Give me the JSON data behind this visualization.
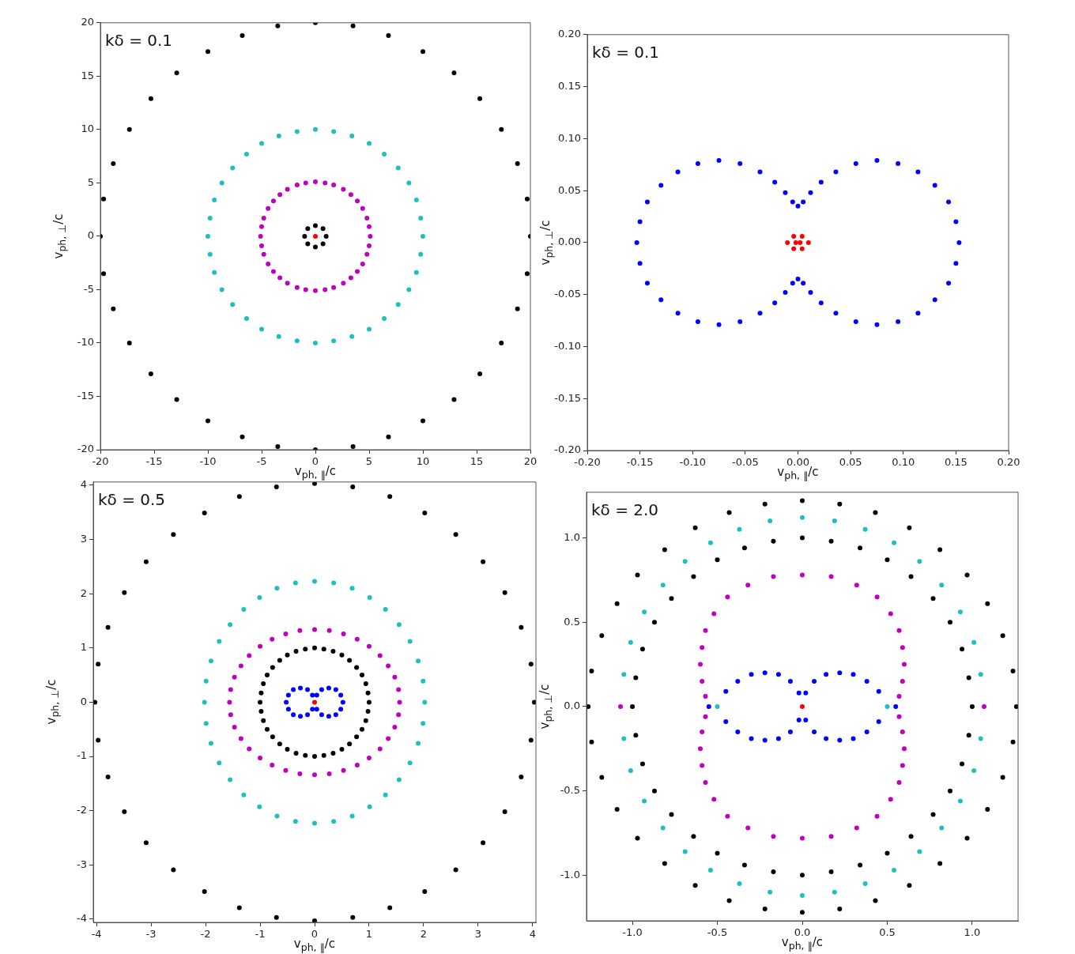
{
  "chart_data": [
    {
      "type": "scatter",
      "marker": "circle",
      "xlabel": "v$_{ph, ∥}$/c",
      "ylabel": "v$_{ph, ⊥}$/c",
      "annotations": [
        "kδ = 0.1"
      ],
      "xlim": [
        -20,
        20
      ],
      "ylim": [
        -20,
        20
      ],
      "xticks": [
        -20,
        -15,
        -10,
        -5,
        0,
        5,
        10,
        15,
        20
      ],
      "yticks": [
        -20,
        -15,
        -10,
        -5,
        0,
        5,
        10,
        15,
        20
      ],
      "series": [
        {
          "color": "#000000",
          "x": [
            20,
            19.7,
            18.8,
            17.3,
            15.3,
            12.9,
            10,
            6.8,
            3.5,
            0,
            -3.5,
            -6.8,
            -10,
            -12.9,
            -15.3,
            -17.3,
            -18.8,
            -19.7,
            -20,
            -19.7,
            -18.8,
            -17.3,
            -15.3,
            -12.9,
            -10,
            -6.8,
            -3.5,
            0,
            3.5,
            6.8,
            10,
            12.9,
            15.3,
            17.3,
            18.8,
            19.7
          ],
          "values": [
            0,
            3.5,
            6.8,
            10,
            12.9,
            15.3,
            17.3,
            18.8,
            19.7,
            20,
            19.7,
            18.8,
            17.3,
            15.3,
            12.9,
            10,
            6.8,
            3.5,
            0,
            -3.5,
            -6.8,
            -10,
            -12.9,
            -15.3,
            -17.3,
            -18.8,
            -19.7,
            -20,
            -19.7,
            -18.8,
            -17.3,
            -15.3,
            -12.9,
            -10,
            -6.8,
            -3.5
          ]
        },
        {
          "color": "#1fbfbf",
          "x": [
            10,
            9.8,
            9.4,
            8.7,
            7.7,
            6.4,
            5,
            3.4,
            1.7,
            0,
            -1.7,
            -3.4,
            -5,
            -6.4,
            -7.7,
            -8.7,
            -9.4,
            -9.8,
            -10,
            -9.8,
            -9.4,
            -8.7,
            -7.7,
            -6.4,
            -5,
            -3.4,
            -1.7,
            0,
            1.7,
            3.4,
            5,
            6.4,
            7.7,
            8.7,
            9.4,
            9.8
          ],
          "values": [
            0,
            1.7,
            3.4,
            5,
            6.4,
            7.7,
            8.7,
            9.4,
            9.8,
            10,
            9.8,
            9.4,
            8.7,
            7.7,
            6.4,
            5,
            3.4,
            1.7,
            0,
            -1.7,
            -3.4,
            -5,
            -6.4,
            -7.7,
            -8.7,
            -9.4,
            -9.8,
            -10,
            -9.8,
            -9.4,
            -8.7,
            -7.7,
            -6.4,
            -5,
            -3.4,
            -1.7
          ]
        },
        {
          "color": "#bf00bf",
          "x": [
            5.1,
            5,
            4.8,
            4.4,
            3.9,
            3.3,
            2.6,
            1.7,
            0.9,
            0,
            -0.9,
            -1.7,
            -2.6,
            -3.3,
            -3.9,
            -4.4,
            -4.8,
            -5,
            -5.1,
            -5,
            -4.8,
            -4.4,
            -3.9,
            -3.3,
            -2.6,
            -1.7,
            -0.9,
            0,
            0.9,
            1.7,
            2.6,
            3.3,
            3.9,
            4.4,
            4.8,
            5
          ],
          "values": [
            0,
            0.9,
            1.7,
            2.6,
            3.3,
            3.9,
            4.4,
            4.8,
            5,
            5.1,
            5,
            4.8,
            4.4,
            3.9,
            3.3,
            2.6,
            1.7,
            0.9,
            0,
            -0.9,
            -1.7,
            -2.6,
            -3.3,
            -3.9,
            -4.4,
            -4.8,
            -5,
            -5.1,
            -5,
            -4.8,
            -4.4,
            -3.9,
            -3.3,
            -2.6,
            -1.7,
            -0.9
          ]
        },
        {
          "color": "#000000",
          "x": [
            1,
            0.71,
            0,
            -0.71,
            -1,
            -0.71,
            0,
            0.71
          ],
          "values": [
            0,
            0.71,
            1,
            0.71,
            0,
            -0.71,
            -1,
            -0.71
          ]
        },
        {
          "color": "#ff0000",
          "x": [
            0
          ],
          "values": [
            0
          ]
        }
      ]
    },
    {
      "type": "scatter",
      "marker": "circle",
      "xlabel": "v$_{ph, ∥}$/c",
      "ylabel": "v$_{ph, ⊥}$/c",
      "annotations": [
        "kδ = 0.1"
      ],
      "xlim": [
        -0.2,
        0.2
      ],
      "ylim": [
        -0.2,
        0.2
      ],
      "xticks": [
        {
          "value": -0.2,
          "label": "-0.20"
        },
        {
          "value": -0.15,
          "label": "-0.15"
        },
        {
          "value": -0.1,
          "label": "-0.10"
        },
        {
          "value": -0.05,
          "label": "-0.05"
        },
        {
          "value": 0,
          "label": "0.00"
        },
        {
          "value": 0.05,
          "label": "0.05"
        },
        {
          "value": 0.1,
          "label": "0.10"
        },
        {
          "value": 0.15,
          "label": "0.15"
        },
        {
          "value": 0.2,
          "label": "0.20"
        }
      ],
      "yticks": [
        {
          "value": -0.2,
          "label": "-0.20"
        },
        {
          "value": -0.15,
          "label": "-0.15"
        },
        {
          "value": -0.1,
          "label": "-0.10"
        },
        {
          "value": -0.05,
          "label": "-0.05"
        },
        {
          "value": 0,
          "label": "0.00"
        },
        {
          "value": 0.05,
          "label": "0.05"
        },
        {
          "value": 0.1,
          "label": "0.10"
        },
        {
          "value": 0.15,
          "label": "0.15"
        },
        {
          "value": 0.2,
          "label": "0.20"
        }
      ],
      "series": [
        {
          "color": "#0000ff",
          "x": [
            0.153,
            0.15,
            0.143,
            0.13,
            0.114,
            0.095,
            0.075,
            0.055,
            0.036,
            0.022,
            0.012,
            0.005,
            0,
            -0.005,
            -0.012,
            -0.022,
            -0.036,
            -0.055,
            -0.075,
            -0.095,
            -0.114,
            -0.13,
            -0.143,
            -0.15,
            -0.153,
            -0.15,
            -0.143,
            -0.13,
            -0.114,
            -0.095,
            -0.075,
            -0.055,
            -0.036,
            -0.022,
            -0.012,
            -0.005,
            0,
            0.005,
            0.012,
            0.022,
            0.036,
            0.055,
            0.075,
            0.095,
            0.114,
            0.13,
            0.143,
            0.15
          ],
          "values": [
            0,
            0.02,
            0.039,
            0.055,
            0.068,
            0.076,
            0.079,
            0.076,
            0.068,
            0.058,
            0.048,
            0.039,
            0.035,
            0.039,
            0.048,
            0.058,
            0.068,
            0.076,
            0.079,
            0.076,
            0.068,
            0.055,
            0.039,
            0.02,
            0,
            -0.02,
            -0.039,
            -0.055,
            -0.068,
            -0.076,
            -0.079,
            -0.076,
            -0.068,
            -0.058,
            -0.048,
            -0.039,
            -0.035,
            -0.039,
            -0.048,
            -0.058,
            -0.068,
            -0.076,
            -0.079,
            -0.076,
            -0.068,
            -0.055,
            -0.039,
            -0.02
          ]
        },
        {
          "color": "#ff0000",
          "x": [
            -0.01,
            -0.004,
            -0.004,
            0.002,
            -0.002,
            0.004,
            0.004,
            0.01
          ],
          "values": [
            0,
            0.006,
            -0.006,
            0,
            0,
            0.006,
            -0.006,
            0
          ]
        }
      ]
    },
    {
      "type": "scatter",
      "marker": "circle",
      "xlabel": "v$_{ph, ∥}$/c",
      "ylabel": "v$_{ph, ⊥}$/c",
      "annotations": [
        "kδ = 0.5"
      ],
      "xlim": [
        -4.06,
        4.06
      ],
      "ylim": [
        -4.06,
        4.06
      ],
      "xticks": [
        -4,
        -3,
        -2,
        -1,
        0,
        1,
        2,
        3,
        4
      ],
      "yticks": [
        -4,
        -3,
        -2,
        -1,
        0,
        1,
        2,
        3,
        4
      ],
      "series": [
        {
          "color": "#000000",
          "x": [
            4.03,
            3.97,
            3.79,
            3.49,
            3.09,
            2.59,
            2.02,
            1.38,
            0.7,
            0,
            -0.7,
            -1.38,
            -2.02,
            -2.59,
            -3.09,
            -3.49,
            -3.79,
            -3.97,
            -4.03,
            -3.97,
            -3.79,
            -3.49,
            -3.09,
            -2.59,
            -2.02,
            -1.38,
            -0.7,
            0,
            0.7,
            1.38,
            2.02,
            2.59,
            3.09,
            3.49,
            3.79,
            3.97
          ],
          "values": [
            0,
            0.7,
            1.38,
            2.02,
            2.59,
            3.09,
            3.49,
            3.79,
            3.97,
            4.03,
            3.97,
            3.79,
            3.49,
            3.09,
            2.59,
            2.02,
            1.38,
            0.7,
            0,
            -0.7,
            -1.38,
            -2.02,
            -2.59,
            -3.09,
            -3.49,
            -3.79,
            -3.97,
            -4.03,
            -3.97,
            -3.79,
            -3.49,
            -3.09,
            -2.59,
            -2.02,
            -1.38,
            -0.7
          ]
        },
        {
          "color": "#1fbfbf",
          "x": [
            2.02,
            1.99,
            1.9,
            1.75,
            1.55,
            1.3,
            1.01,
            0.69,
            0.35,
            0,
            -0.35,
            -0.69,
            -1.01,
            -1.3,
            -1.55,
            -1.75,
            -1.9,
            -1.99,
            -2.02,
            -1.99,
            -1.9,
            -1.75,
            -1.55,
            -1.3,
            -1.01,
            -0.69,
            -0.35,
            0,
            0.35,
            0.69,
            1.01,
            1.3,
            1.55,
            1.75,
            1.9,
            1.99
          ],
          "values": [
            0,
            0.39,
            0.76,
            1.12,
            1.43,
            1.71,
            1.93,
            2.1,
            2.2,
            2.23,
            2.2,
            2.1,
            1.93,
            1.71,
            1.43,
            1.12,
            0.76,
            0.39,
            0,
            -0.39,
            -0.76,
            -1.12,
            -1.43,
            -1.71,
            -1.93,
            -2.1,
            -2.2,
            -2.23,
            -2.2,
            -2.1,
            -1.93,
            -1.71,
            -1.43,
            -1.12,
            -0.76,
            -0.39
          ]
        },
        {
          "color": "#bf00bf",
          "x": [
            1.56,
            1.54,
            1.47,
            1.35,
            1.2,
            1.0,
            0.78,
            0.53,
            0.27,
            0,
            -0.27,
            -0.53,
            -0.78,
            -1.0,
            -1.2,
            -1.35,
            -1.47,
            -1.54,
            -1.56,
            -1.54,
            -1.47,
            -1.35,
            -1.2,
            -1.0,
            -0.78,
            -0.53,
            -0.27,
            0,
            0.27,
            0.53,
            0.78,
            1.0,
            1.2,
            1.35,
            1.47,
            1.54
          ],
          "values": [
            0,
            0.23,
            0.46,
            0.67,
            0.86,
            1.03,
            1.16,
            1.26,
            1.32,
            1.34,
            1.32,
            1.26,
            1.16,
            1.03,
            0.86,
            0.67,
            0.46,
            0.23,
            0,
            -0.23,
            -0.46,
            -0.67,
            -0.86,
            -1.03,
            -1.16,
            -1.26,
            -1.32,
            -1.34,
            -1.32,
            -1.26,
            -1.16,
            -1.03,
            -0.86,
            -0.67,
            -0.46,
            -0.23
          ]
        },
        {
          "color": "#000000",
          "x": [
            1,
            0.98,
            0.94,
            0.87,
            0.77,
            0.64,
            0.5,
            0.34,
            0.17,
            0,
            -0.17,
            -0.34,
            -0.5,
            -0.64,
            -0.77,
            -0.87,
            -0.94,
            -0.98,
            -1,
            -0.98,
            -0.94,
            -0.87,
            -0.77,
            -0.64,
            -0.5,
            -0.34,
            -0.17,
            0,
            0.17,
            0.34,
            0.5,
            0.64,
            0.77,
            0.87,
            0.94,
            0.98
          ],
          "values": [
            0,
            0.17,
            0.34,
            0.5,
            0.64,
            0.77,
            0.87,
            0.94,
            0.98,
            1,
            0.98,
            0.94,
            0.87,
            0.77,
            0.64,
            0.5,
            0.34,
            0.17,
            0,
            -0.17,
            -0.34,
            -0.5,
            -0.64,
            -0.77,
            -0.87,
            -0.94,
            -0.98,
            -1,
            -0.98,
            -0.94,
            -0.87,
            -0.77,
            -0.64,
            -0.5,
            -0.34,
            -0.17
          ]
        },
        {
          "color": "#0000ff",
          "x": [
            0.04,
            0.13,
            0.26,
            0.39,
            0.48,
            0.52,
            0.48,
            0.39,
            0.26,
            0.13,
            0.04,
            -0.04,
            -0.13,
            -0.26,
            -0.39,
            -0.48,
            -0.52,
            -0.48,
            -0.39,
            -0.26,
            -0.13,
            -0.04
          ],
          "values": [
            0.13,
            0.23,
            0.26,
            0.23,
            0.13,
            0,
            -0.13,
            -0.23,
            -0.26,
            -0.23,
            -0.13,
            0.13,
            0.23,
            0.26,
            0.23,
            0.13,
            0,
            -0.13,
            -0.23,
            -0.26,
            -0.23,
            -0.13
          ]
        },
        {
          "color": "#ff0000",
          "x": [
            0
          ],
          "values": [
            0
          ]
        }
      ]
    },
    {
      "type": "scatter",
      "marker": "circle",
      "xlabel": "v$_{ph, ∥}$/c",
      "ylabel": "v$_{ph, ⊥}$/c",
      "annotations": [
        "kδ = 2.0"
      ],
      "xlim": [
        -1.27,
        1.27
      ],
      "ylim": [
        -1.27,
        1.27
      ],
      "xticks": [
        {
          "value": -1,
          "label": "-1.0"
        },
        {
          "value": -0.5,
          "label": "-0.5"
        },
        {
          "value": 0,
          "label": "0.0"
        },
        {
          "value": 0.5,
          "label": "0.5"
        },
        {
          "value": 1,
          "label": "1.0"
        }
      ],
      "yticks": [
        {
          "value": -1,
          "label": "-1.0"
        },
        {
          "value": -0.5,
          "label": "-0.5"
        },
        {
          "value": 0,
          "label": "0.0"
        },
        {
          "value": 0.5,
          "label": "0.5"
        },
        {
          "value": 1,
          "label": "1.0"
        }
      ],
      "series": [
        {
          "color": "#000000",
          "x": [
            1.26,
            1.24,
            1.18,
            1.09,
            0.97,
            0.81,
            0.63,
            0.43,
            0.22,
            0,
            -0.22,
            -0.43,
            -0.63,
            -0.81,
            -0.97,
            -1.09,
            -1.18,
            -1.24,
            -1.26,
            -1.24,
            -1.18,
            -1.09,
            -0.97,
            -0.81,
            -0.63,
            -0.43,
            -0.22,
            0,
            0.22,
            0.43,
            0.63,
            0.81,
            0.97,
            1.09,
            1.18,
            1.24
          ],
          "values": [
            0,
            0.21,
            0.42,
            0.61,
            0.78,
            0.93,
            1.06,
            1.15,
            1.2,
            1.22,
            1.2,
            1.15,
            1.06,
            0.93,
            0.78,
            0.61,
            0.42,
            0.21,
            0,
            -0.21,
            -0.42,
            -0.61,
            -0.78,
            -0.93,
            -1.06,
            -1.15,
            -1.2,
            -1.22,
            -1.2,
            -1.15,
            -1.06,
            -0.93,
            -0.78,
            -0.61,
            -0.42,
            -0.21
          ]
        },
        {
          "color": "#1fbfbf",
          "x": [
            1.05,
            1.01,
            0.93,
            0.82,
            0.69,
            0.54,
            0.37,
            0.19,
            0,
            -0.19,
            -0.37,
            -0.54,
            -0.69,
            -0.82,
            -0.93,
            -1.01,
            -1.05,
            -1.05,
            -1.01,
            -0.93,
            -0.82,
            -0.69,
            -0.54,
            -0.37,
            -0.19,
            0,
            0.19,
            0.37,
            0.54,
            0.69,
            0.82,
            0.93,
            1.01,
            1.05
          ],
          "values": [
            0.19,
            0.38,
            0.56,
            0.72,
            0.86,
            0.97,
            1.05,
            1.1,
            1.12,
            1.1,
            1.05,
            0.97,
            0.86,
            0.72,
            0.56,
            0.38,
            0.19,
            -0.19,
            -0.38,
            -0.56,
            -0.72,
            -0.86,
            -0.97,
            -1.05,
            -1.1,
            -1.12,
            -1.1,
            -1.05,
            -0.97,
            -0.86,
            -0.72,
            -0.56,
            -0.38,
            -0.19
          ]
        },
        {
          "color": "#000000",
          "x": [
            1,
            0.98,
            0.94,
            0.87,
            0.77,
            0.64,
            0.5,
            0.34,
            0.17,
            0,
            -0.17,
            -0.34,
            -0.5,
            -0.64,
            -0.77,
            -0.87,
            -0.94,
            -0.98,
            -1,
            -0.98,
            -0.94,
            -0.87,
            -0.77,
            -0.64,
            -0.5,
            -0.34,
            -0.17,
            0,
            0.17,
            0.34,
            0.5,
            0.64,
            0.77,
            0.87,
            0.94,
            0.98
          ],
          "values": [
            0,
            0.17,
            0.34,
            0.5,
            0.64,
            0.77,
            0.87,
            0.94,
            0.98,
            1,
            0.98,
            0.94,
            0.87,
            0.77,
            0.64,
            0.5,
            0.34,
            0.17,
            0,
            -0.17,
            -0.34,
            -0.5,
            -0.64,
            -0.77,
            -0.87,
            -0.94,
            -0.98,
            -1,
            -0.98,
            -0.94,
            -0.87,
            -0.77,
            -0.64,
            -0.5,
            -0.34,
            -0.17
          ]
        },
        {
          "color": "#bf00bf",
          "x": [
            0.57,
            0.59,
            0.6,
            0.59,
            0.57,
            0.52,
            0.44,
            0.32,
            0.17,
            0,
            -0.17,
            -0.32,
            -0.44,
            -0.52,
            -0.57,
            -0.59,
            -0.6,
            -0.59,
            -0.57,
            -0.57,
            -0.59,
            -0.6,
            -0.59,
            -0.57,
            -0.52,
            -0.44,
            -0.32,
            -0.17,
            0,
            0.17,
            0.32,
            0.44,
            0.52,
            0.57,
            0.59,
            0.6,
            0.59,
            0.57
          ],
          "values": [
            0.06,
            0.15,
            0.25,
            0.35,
            0.45,
            0.55,
            0.65,
            0.72,
            0.77,
            0.78,
            0.77,
            0.72,
            0.65,
            0.55,
            0.45,
            0.35,
            0.25,
            0.15,
            0.06,
            -0.06,
            -0.15,
            -0.25,
            -0.35,
            -0.45,
            -0.55,
            -0.65,
            -0.72,
            -0.77,
            -0.78,
            -0.77,
            -0.72,
            -0.65,
            -0.55,
            -0.45,
            -0.35,
            -0.25,
            -0.15,
            -0.06
          ]
        },
        {
          "color": "#0000ff",
          "x": [
            -0.45,
            -0.38,
            -0.3,
            -0.22,
            -0.14,
            -0.07,
            -0.02,
            0.02,
            0.07,
            0.14,
            0.22,
            0.3,
            0.38,
            0.45,
            -0.45,
            -0.38,
            -0.3,
            -0.22,
            -0.14,
            -0.07,
            -0.02,
            0.02,
            0.07,
            0.14,
            0.22,
            0.3,
            0.38,
            0.45
          ],
          "values": [
            0.09,
            0.15,
            0.19,
            0.2,
            0.19,
            0.15,
            0.08,
            0.08,
            0.15,
            0.19,
            0.2,
            0.19,
            0.15,
            0.09,
            -0.09,
            -0.15,
            -0.19,
            -0.2,
            -0.19,
            -0.15,
            -0.08,
            -0.08,
            -0.15,
            -0.19,
            -0.2,
            -0.19,
            -0.15,
            -0.09
          ]
        },
        {
          "color": "#bf00bf",
          "x": [
            -1.07,
            1.07
          ],
          "values": [
            0,
            0
          ]
        },
        {
          "color": "#1fbfbf",
          "x": [
            -0.5,
            0.5
          ],
          "values": [
            0,
            0
          ]
        },
        {
          "color": "#0000ff",
          "x": [
            -0.55,
            0.55
          ],
          "values": [
            0,
            0
          ]
        },
        {
          "color": "#ff0000",
          "x": [
            0
          ],
          "values": [
            0
          ]
        }
      ]
    }
  ]
}
